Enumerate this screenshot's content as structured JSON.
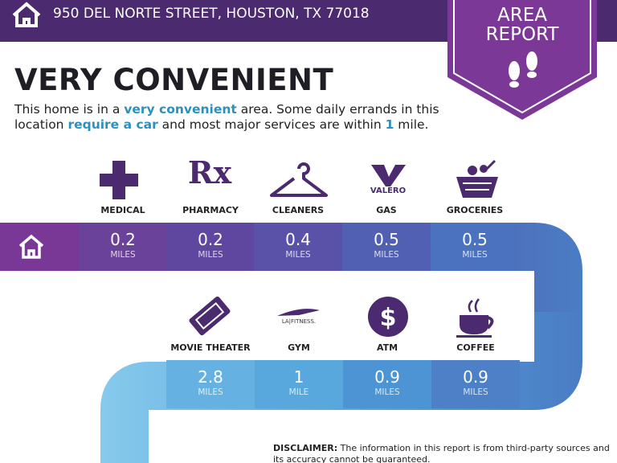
{
  "header": {
    "address": "950 DEL NORTE STREET, HOUSTON, TX 77018"
  },
  "badge": {
    "lines": [
      "AREA",
      "REPORT"
    ]
  },
  "headline": "VERY CONVENIENT",
  "intro": {
    "lines": [
      [
        {
          "text": "This home is in a ",
          "emphasis": false
        },
        {
          "text": "very convenient",
          "emphasis": true
        },
        {
          "text": " area. Some daily errands in this",
          "emphasis": false
        }
      ],
      [
        {
          "text": "location ",
          "emphasis": false
        },
        {
          "text": "require a car",
          "emphasis": true
        },
        {
          "text": " and most major services are within ",
          "emphasis": false
        },
        {
          "text": "1",
          "emphasis": true
        },
        {
          "text": " mile.",
          "emphasis": false
        }
      ]
    ]
  },
  "services": [
    [
      {
        "name": "MEDICAL",
        "distance": 0.2,
        "unit": "MILES"
      },
      {
        "name": "PHARMACY",
        "logo": "Rx",
        "distance": 0.2,
        "unit": "MILES"
      },
      {
        "name": "CLEANERS",
        "distance": 0.4,
        "unit": "MILES"
      },
      {
        "name": "GAS",
        "logo": "VALERO",
        "distance": 0.5,
        "unit": "MILES"
      },
      {
        "name": "GROCERIES",
        "distance": 0.5,
        "unit": "MILES"
      }
    ],
    [
      {
        "name": "MOVIE THEATER",
        "distance": 2.8,
        "unit": "MILES"
      },
      {
        "name": "GYM",
        "logo": "LA|FITNESS.",
        "distance": 1,
        "unit": "MILE"
      },
      {
        "name": "ATM",
        "logo": "$",
        "distance": 0.9,
        "unit": "MILES"
      },
      {
        "name": "COFFEE",
        "distance": 0.9,
        "unit": "MILES"
      }
    ]
  ],
  "disclaimer": {
    "label": "DISCLAIMER:",
    "text": " The information in this report is from third-party sources and its accuracy cannot be guaranteed."
  }
}
